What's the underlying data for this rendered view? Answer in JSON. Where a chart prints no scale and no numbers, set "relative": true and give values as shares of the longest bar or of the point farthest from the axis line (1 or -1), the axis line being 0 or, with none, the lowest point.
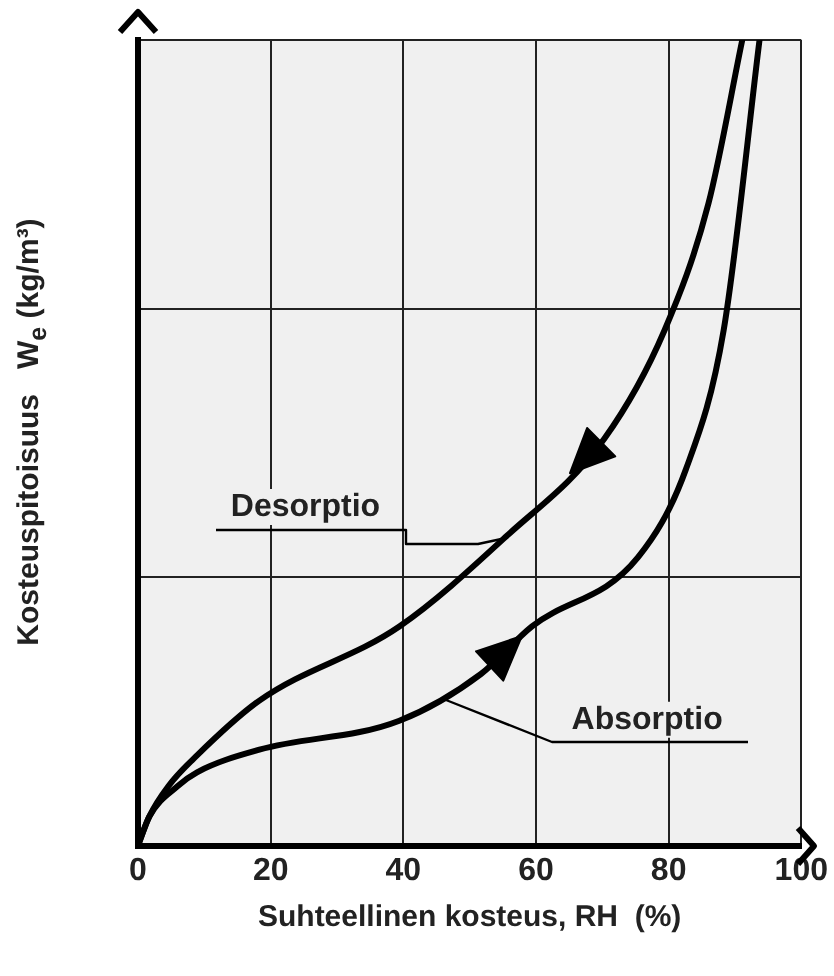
{
  "chart_data": {
    "type": "line",
    "relative": true,
    "xlabel": "Suhteellinen kosteus, RH  (%)",
    "ylabel": "Kosteuspitoisuus   W$_{e}$ (kg/m³)",
    "xlim": [
      0,
      100
    ],
    "xticks": [
      0,
      20,
      40,
      60,
      80,
      100
    ],
    "grid": true,
    "legend": false,
    "marker": "none",
    "line_style": "solid",
    "series": [
      {
        "color": "#000000",
        "x": [
          0,
          1.7,
          4.6,
          8.9,
          18.3,
          39.4,
          55.4,
          70.3,
          79.4,
          86,
          91.1
        ],
        "values": [
          0,
          0.036,
          0.074,
          0.112,
          0.18,
          0.272,
          0.383,
          0.505,
          0.64,
          0.797,
          1
        ]
      },
      {
        "color": "#000000",
        "x": [
          0,
          1.7,
          6,
          8.9,
          18.3,
          39.4,
          51.7,
          59.4,
          75.4,
          82.6,
          88.3,
          93.7
        ],
        "values": [
          0,
          0.036,
          0.074,
          0.091,
          0.119,
          0.155,
          0.213,
          0.272,
          0.358,
          0.467,
          0.64,
          1
        ]
      }
    ],
    "annotations": [
      {
        "text": "Desorptio",
        "x": 55.4,
        "y": 0.383
      },
      {
        "text": "Absorptio",
        "x": 46,
        "y": 0.186
      }
    ]
  }
}
